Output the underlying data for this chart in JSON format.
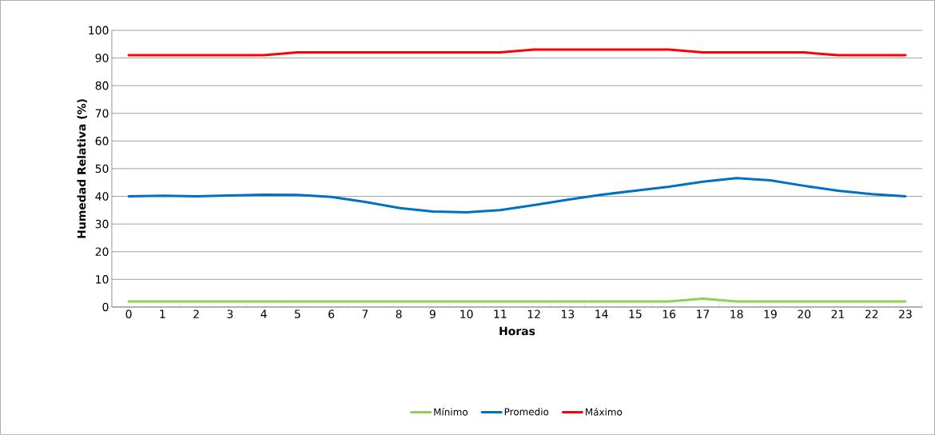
{
  "chart_data": {
    "type": "line",
    "xlabel": "Horas",
    "ylabel": "Humedad Relativa (%)",
    "categories": [
      "0",
      "1",
      "2",
      "3",
      "4",
      "5",
      "6",
      "7",
      "8",
      "9",
      "10",
      "11",
      "12",
      "13",
      "14",
      "15",
      "16",
      "17",
      "18",
      "19",
      "20",
      "21",
      "22",
      "23"
    ],
    "series": [
      {
        "name": "Mínimo",
        "color": "#92d050",
        "values": [
          2,
          2,
          2,
          2,
          2,
          2,
          2,
          2,
          2,
          2,
          2,
          2,
          2,
          2,
          2,
          2,
          2,
          3,
          2,
          2,
          2,
          2,
          2,
          2
        ]
      },
      {
        "name": "Promedio",
        "color": "#0070c0",
        "values": [
          40,
          40.2,
          40,
          40.3,
          40.6,
          40.5,
          39.8,
          38,
          35.8,
          34.5,
          34.2,
          35,
          36.8,
          38.8,
          40.6,
          42,
          43.5,
          45.3,
          46.6,
          45.8,
          43.8,
          42,
          40.8,
          40
        ]
      },
      {
        "name": "Máximo",
        "color": "#ff0000",
        "values": [
          91,
          91,
          91,
          91,
          91,
          92,
          92,
          92,
          92,
          92,
          92,
          92,
          93,
          93,
          93,
          93,
          93,
          92,
          92,
          92,
          92,
          91,
          91,
          91
        ]
      }
    ],
    "ylim": [
      0,
      100
    ],
    "yticks": [
      0,
      10,
      20,
      30,
      40,
      50,
      60,
      70,
      80,
      90,
      100
    ],
    "grid": "y",
    "legend": "bottom",
    "marker": "none",
    "line_style": "solid"
  }
}
